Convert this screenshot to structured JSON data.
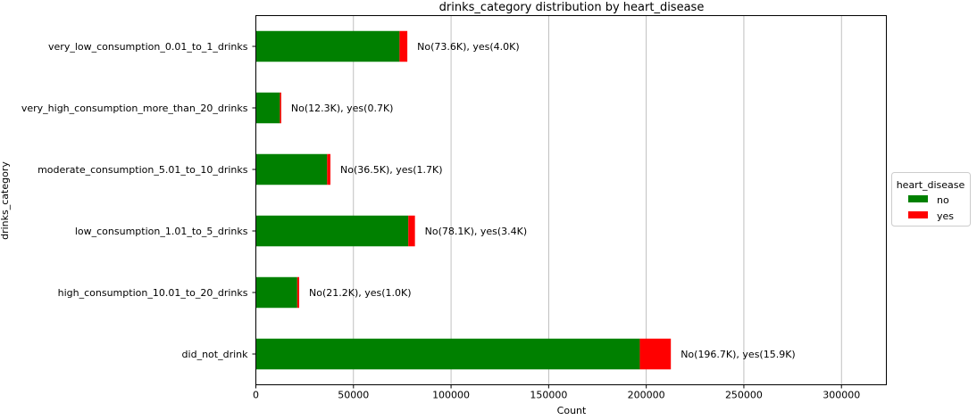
{
  "chart_data": {
    "type": "bar",
    "orientation": "horizontal",
    "stacked": true,
    "title": "drinks_category distribution by heart_disease",
    "xlabel": "Count",
    "ylabel": "drinks_category",
    "xlim": [
      0,
      323000
    ],
    "xticks": [
      0,
      50000,
      100000,
      150000,
      200000,
      250000,
      300000
    ],
    "xtick_labels": [
      "0",
      "50000",
      "100000",
      "150000",
      "200000",
      "250000",
      "300000"
    ],
    "grid": "vertical",
    "categories": [
      "very_low_consumption_0.01_to_1_drinks",
      "very_high_consumption_more_than_20_drinks",
      "moderate_consumption_5.01_to_10_drinks",
      "low_consumption_1.01_to_5_drinks",
      "high_consumption_10.01_to_20_drinks",
      "did_not_drink"
    ],
    "series": [
      {
        "name": "no",
        "color": "#008000",
        "values": [
          73600,
          12300,
          36500,
          78100,
          21200,
          196700
        ]
      },
      {
        "name": "yes",
        "color": "#ff0000",
        "values": [
          4000,
          700,
          1700,
          3400,
          1000,
          15900
        ]
      }
    ],
    "annotations": [
      "No(73.6K), yes(4.0K)",
      "No(12.3K), yes(0.7K)",
      "No(36.5K), yes(1.7K)",
      "No(78.1K), yes(3.4K)",
      "No(21.2K), yes(1.0K)",
      "No(196.7K), yes(15.9K)"
    ],
    "legend": {
      "title": "heart_disease",
      "position": "outside-right",
      "entries": [
        "no",
        "yes"
      ]
    }
  }
}
